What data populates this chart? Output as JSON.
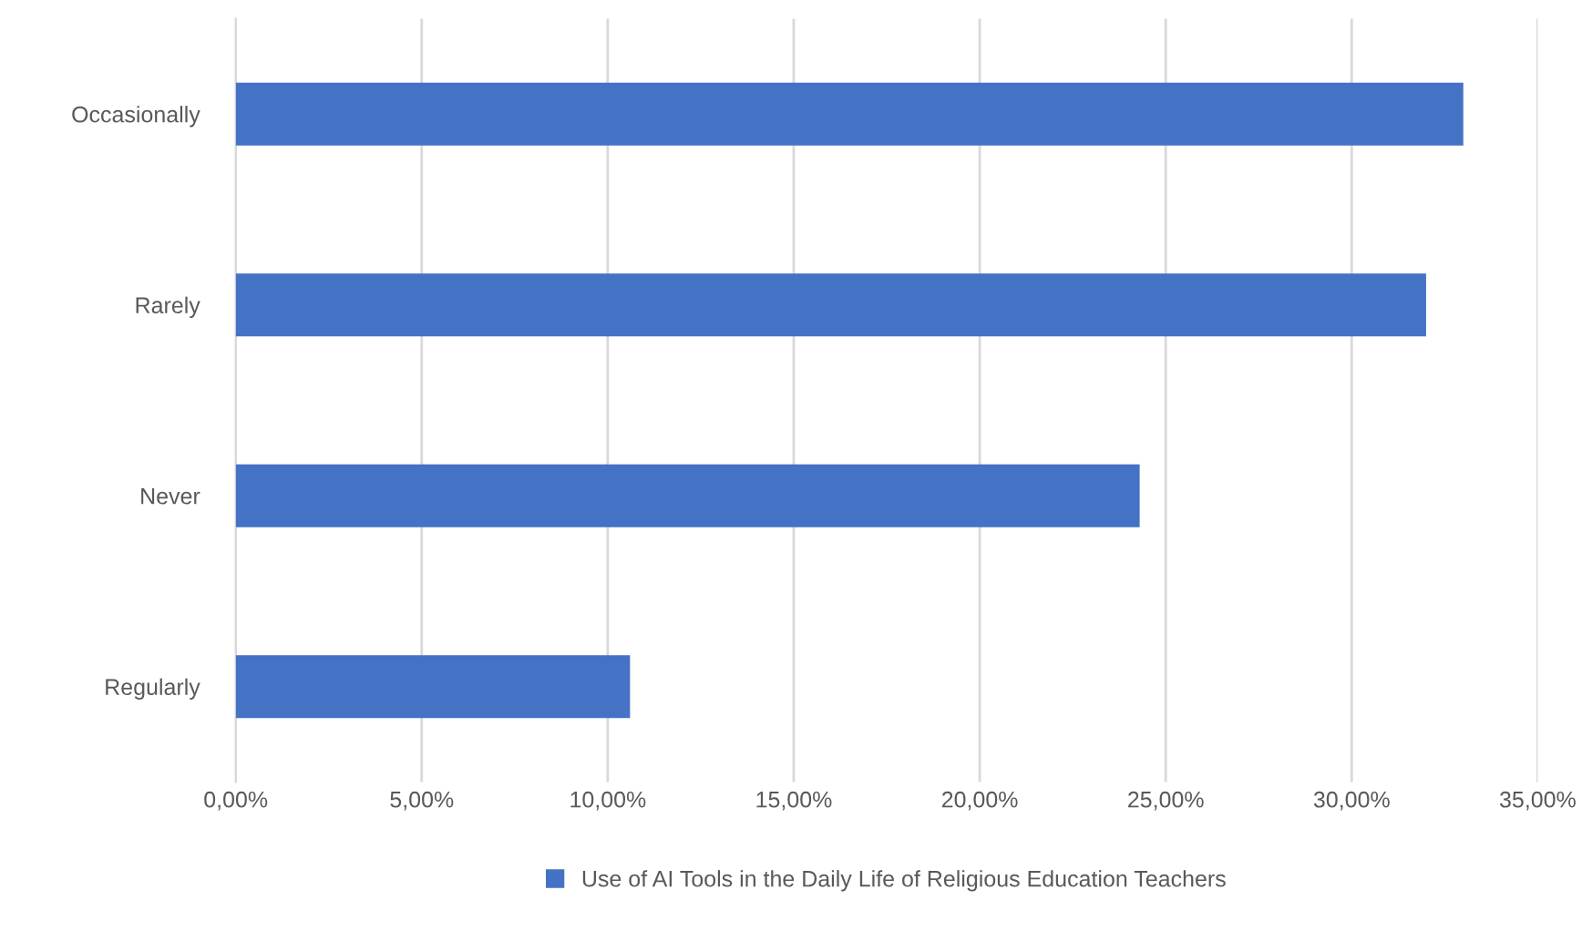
{
  "chart_data": {
    "type": "bar",
    "orientation": "horizontal",
    "categories": [
      "Occasionally",
      "Rarely",
      "Never",
      "Regularly"
    ],
    "series": [
      {
        "name": "Use of AI Tools in the Daily Life of Religious Education Teachers",
        "color": "#4472c4",
        "values": [
          33.0,
          32.0,
          24.3,
          10.6
        ]
      }
    ],
    "xlim": [
      0,
      35
    ],
    "xticks": [
      {
        "value": 0,
        "label": "0,00%"
      },
      {
        "value": 5,
        "label": "5,00%"
      },
      {
        "value": 10,
        "label": "10,00%"
      },
      {
        "value": 15,
        "label": "15,00%"
      },
      {
        "value": 20,
        "label": "20,00%"
      },
      {
        "value": 25,
        "label": "25,00%"
      },
      {
        "value": 30,
        "label": "30,00%"
      },
      {
        "value": 35,
        "label": "35,00%"
      }
    ],
    "grid": "x",
    "legend": "bottom"
  }
}
